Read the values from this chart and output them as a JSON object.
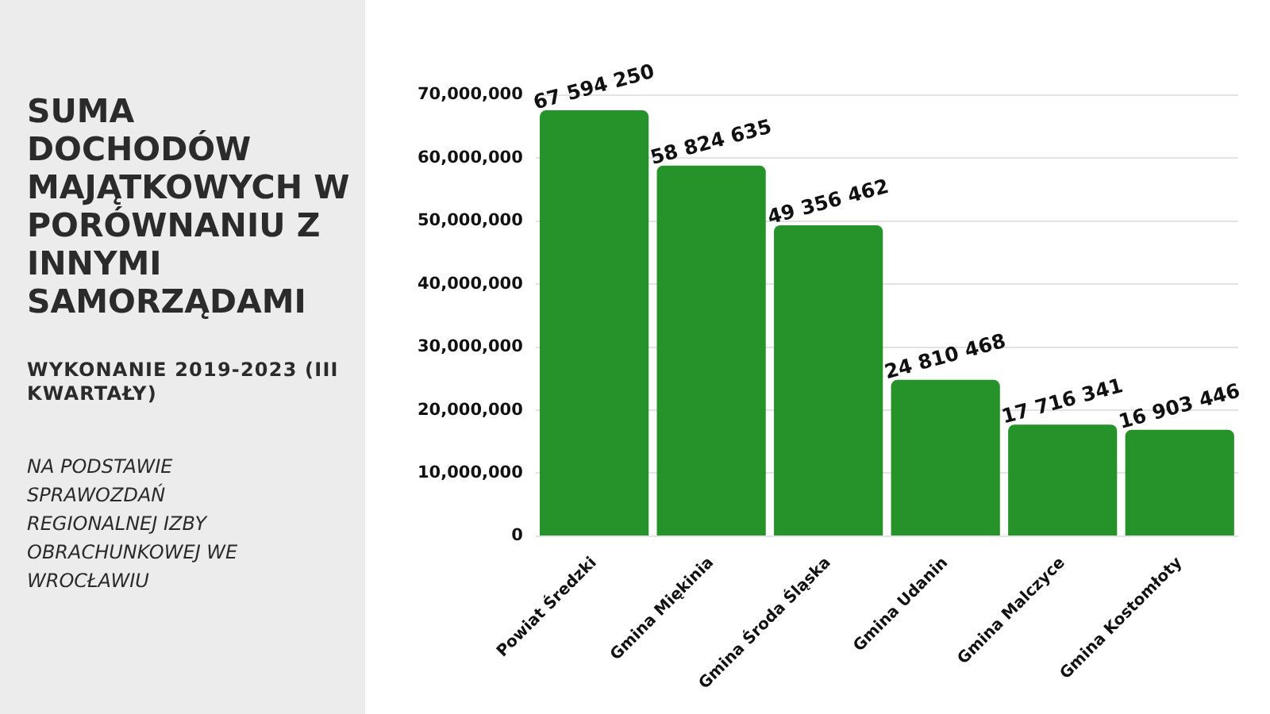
{
  "chart_data": {
    "type": "bar",
    "title": "SUMA DOCHODÓW MAJĄTKOWYCH W PORÓWNANIU Z INNYMI SAMORZĄDAMI",
    "subtitle": "WYKONANIE 2019-2023 (III KWARTAŁY)",
    "annotations": [
      "NA PODSTAWIE SPRAWOZDAŃ REGIONALNEJ IZBY OBRACHUNKOWEJ WE WROCŁAWIU"
    ],
    "categories": [
      "Powiat Średzki",
      "Gmina Miękinia",
      "Gmina Środa Śląska",
      "Gmina Udanin",
      "Gmina Malczyce",
      "Gmina Kostomłoty"
    ],
    "values": [
      67594250,
      58824635,
      49356462,
      24810468,
      17716341,
      16903446
    ],
    "value_labels": [
      "67 594 250",
      "58 824 635",
      "49 356 462",
      "24 810 468",
      "17 716 341",
      "16 903 446"
    ],
    "color": "#26922a",
    "ylim": [
      0,
      70000000
    ],
    "yticks": [
      {
        "value": 0,
        "label": "0"
      },
      {
        "value": 10000000,
        "label": "10,000,000"
      },
      {
        "value": 20000000,
        "label": "20,000,000"
      },
      {
        "value": 30000000,
        "label": "30,000,000"
      },
      {
        "value": 40000000,
        "label": "40,000,000"
      },
      {
        "value": 50000000,
        "label": "50,000,000"
      },
      {
        "value": 60000000,
        "label": "60,000,000"
      },
      {
        "value": 70000000,
        "label": "70,000,000"
      }
    ],
    "grid": "y",
    "legend": false
  }
}
